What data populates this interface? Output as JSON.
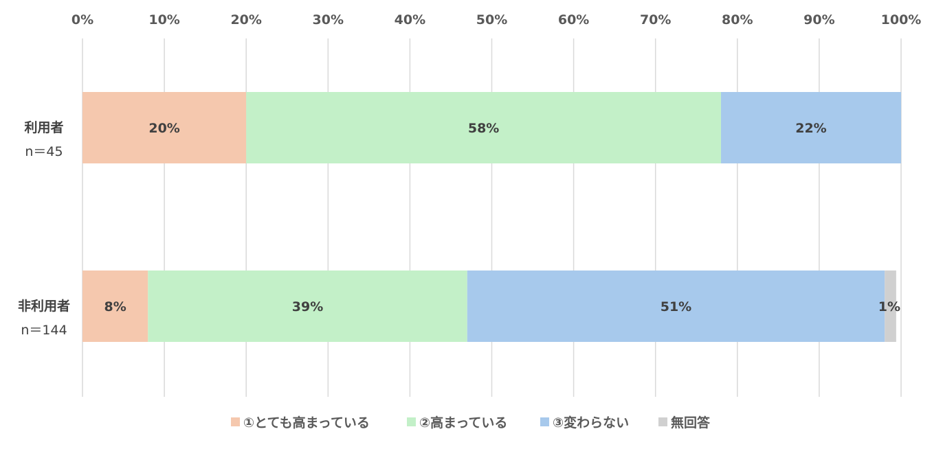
{
  "chart_data": {
    "type": "bar",
    "orientation": "horizontal",
    "stacked": "percent",
    "title": "",
    "xlim": [
      0,
      100
    ],
    "x_ticks": [
      "0%",
      "10%",
      "20%",
      "30%",
      "40%",
      "50%",
      "60%",
      "70%",
      "80%",
      "90%",
      "100%"
    ],
    "x_axis_position": "top",
    "grid": true,
    "legend_position": "bottom",
    "categories": [
      {
        "name": "利用者",
        "n": "n＝45"
      },
      {
        "name": "非利用者",
        "n": "n＝144"
      }
    ],
    "series": [
      {
        "name": "①とても高まっている",
        "color": "#F5C8AE",
        "values": [
          20,
          8
        ],
        "labels": [
          "20%",
          "8%"
        ]
      },
      {
        "name": "②高まっている",
        "color": "#C3F0C8",
        "values": [
          58,
          39
        ],
        "labels": [
          "58%",
          "39%"
        ]
      },
      {
        "name": "③変わらない",
        "color": "#A7C9EC",
        "values": [
          22,
          51
        ],
        "labels": [
          "22%",
          "51%"
        ]
      },
      {
        "name": "無回答",
        "color": "#D0D0D0",
        "values": [
          0,
          1.4
        ],
        "labels": [
          "",
          "1%"
        ]
      }
    ]
  }
}
